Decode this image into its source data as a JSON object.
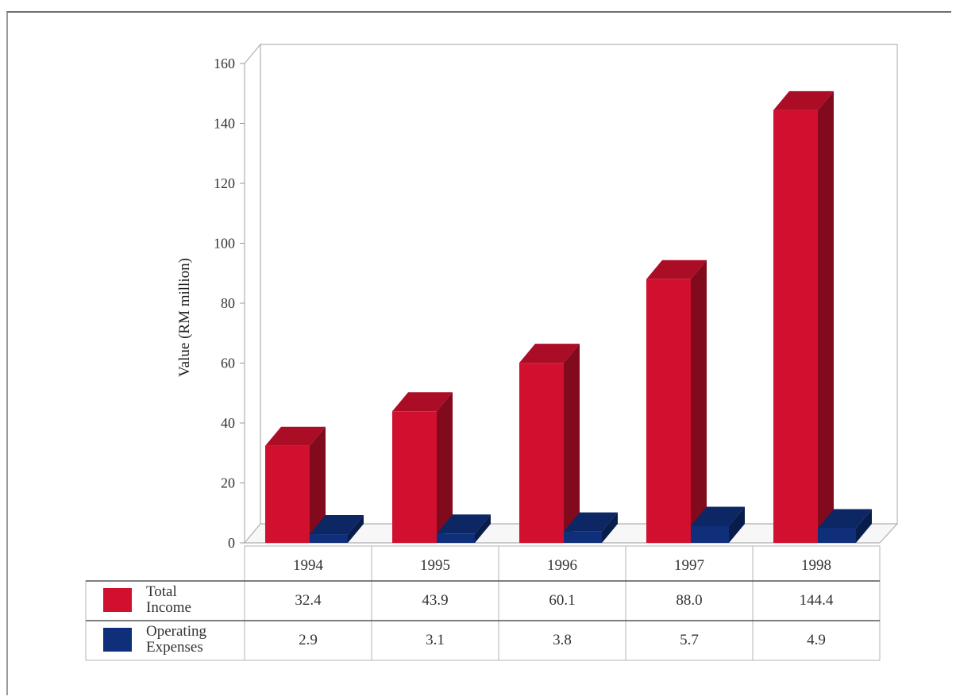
{
  "chart_data": {
    "type": "bar",
    "title": "",
    "ylabel": "Value (RM million)",
    "xlabel": "",
    "ylim": [
      0,
      160
    ],
    "yticks": [
      0,
      20,
      40,
      60,
      80,
      100,
      120,
      140,
      160
    ],
    "categories": [
      "1994",
      "1995",
      "1996",
      "1997",
      "1998"
    ],
    "series": [
      {
        "name_lines": [
          "Total",
          "Income"
        ],
        "color": "#d0102e",
        "values": [
          32.4,
          43.9,
          60.1,
          88.0,
          144.4
        ],
        "value_labels": [
          "32.4",
          "43.9",
          "60.1",
          "88.0",
          "144.4"
        ]
      },
      {
        "name_lines": [
          "Operating",
          "Expenses"
        ],
        "color": "#0f2f7a",
        "values": [
          2.9,
          3.1,
          3.8,
          5.7,
          4.9
        ],
        "value_labels": [
          "2.9",
          "3.1",
          "3.8",
          "5.7",
          "4.9"
        ]
      }
    ],
    "grid": false,
    "legend": "data-table-below"
  }
}
